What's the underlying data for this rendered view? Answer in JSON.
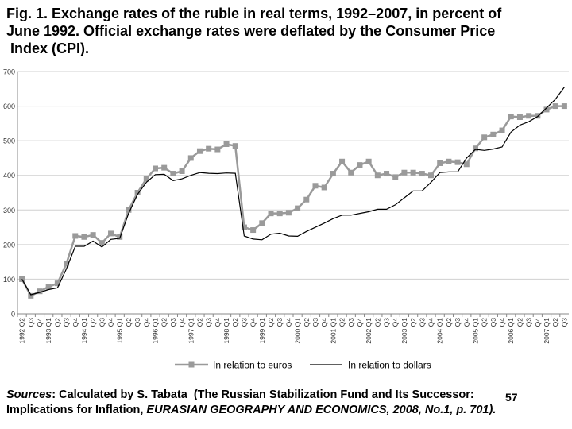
{
  "title_lines": [
    "Fig. 1. Exchange rates of the ruble in real terms, 1992–2007, in percent of",
    "June 1992. Official exchange rates were deflated by the Consumer Price",
    " Index (CPI)."
  ],
  "sources": {
    "label": "Sources",
    "line1_rest": ": Calculated by S. Tabata  (The Russian Stabilization Fund and Its Successor: ",
    "line2_start": "Implications for Inflation, ",
    "line2_italic": "EURASIAN GEOGRAPHY AND ECONOMICS, 2008, No.1, p. 701)."
  },
  "page_number": "57",
  "colors": {
    "euros": "#9a9a9a",
    "dollars": "#000000",
    "grid": "#d0d0d0",
    "axis": "#888888"
  },
  "chart_data": {
    "type": "line",
    "xlabel": "",
    "ylabel": "",
    "ylim": [
      0,
      700
    ],
    "yticks": [
      0,
      100,
      200,
      300,
      400,
      500,
      600,
      700
    ],
    "grid": true,
    "legend_position": "bottom",
    "categories": [
      "1992 Q2",
      "Q3",
      "Q4",
      "1993 Q1",
      "Q2",
      "Q3",
      "Q4",
      "1994 Q1",
      "Q2",
      "Q3",
      "Q4",
      "1995 Q1",
      "Q2",
      "Q3",
      "Q4",
      "1996 Q1",
      "Q2",
      "Q3",
      "Q4",
      "1997 Q1",
      "Q2",
      "Q3",
      "Q4",
      "1998 Q1",
      "Q2",
      "Q3",
      "Q4",
      "1999 Q1",
      "Q2",
      "Q3",
      "Q4",
      "2000 Q1",
      "Q2",
      "Q3",
      "Q4",
      "2001 Q1",
      "Q2",
      "Q3",
      "Q4",
      "2002 Q1",
      "Q2",
      "Q3",
      "Q4",
      "2003 Q1",
      "Q2",
      "Q3",
      "Q4",
      "2004 Q1",
      "Q2",
      "Q3",
      "Q4",
      "2005 Q1",
      "Q2",
      "Q3",
      "Q4",
      "2006 Q1",
      "Q2",
      "Q3",
      "Q4",
      "2007 Q1",
      "Q2",
      "Q3"
    ],
    "series": [
      {
        "name": "In relation to euros",
        "marker": "square",
        "values": [
          100,
          52,
          65,
          78,
          88,
          145,
          225,
          222,
          228,
          205,
          232,
          222,
          300,
          350,
          390,
          420,
          422,
          405,
          412,
          450,
          470,
          477,
          475,
          490,
          485,
          250,
          242,
          262,
          290,
          290,
          292,
          305,
          330,
          370,
          365,
          405,
          440,
          408,
          430,
          440,
          400,
          405,
          395,
          408,
          408,
          405,
          400,
          435,
          440,
          438,
          432,
          478,
          510,
          518,
          530,
          570,
          568,
          572,
          572,
          590,
          600,
          600
        ]
      },
      {
        "name": "In relation to dollars",
        "marker": "none",
        "values": [
          100,
          55,
          62,
          70,
          75,
          130,
          195,
          195,
          210,
          193,
          215,
          218,
          290,
          345,
          380,
          402,
          403,
          385,
          390,
          400,
          408,
          406,
          405,
          407,
          406,
          225,
          216,
          214,
          230,
          233,
          225,
          224,
          238,
          250,
          262,
          275,
          285,
          285,
          290,
          295,
          302,
          302,
          315,
          335,
          355,
          355,
          380,
          408,
          410,
          410,
          450,
          475,
          472,
          476,
          482,
          525,
          545,
          555,
          570,
          595,
          620,
          655
        ]
      }
    ]
  }
}
